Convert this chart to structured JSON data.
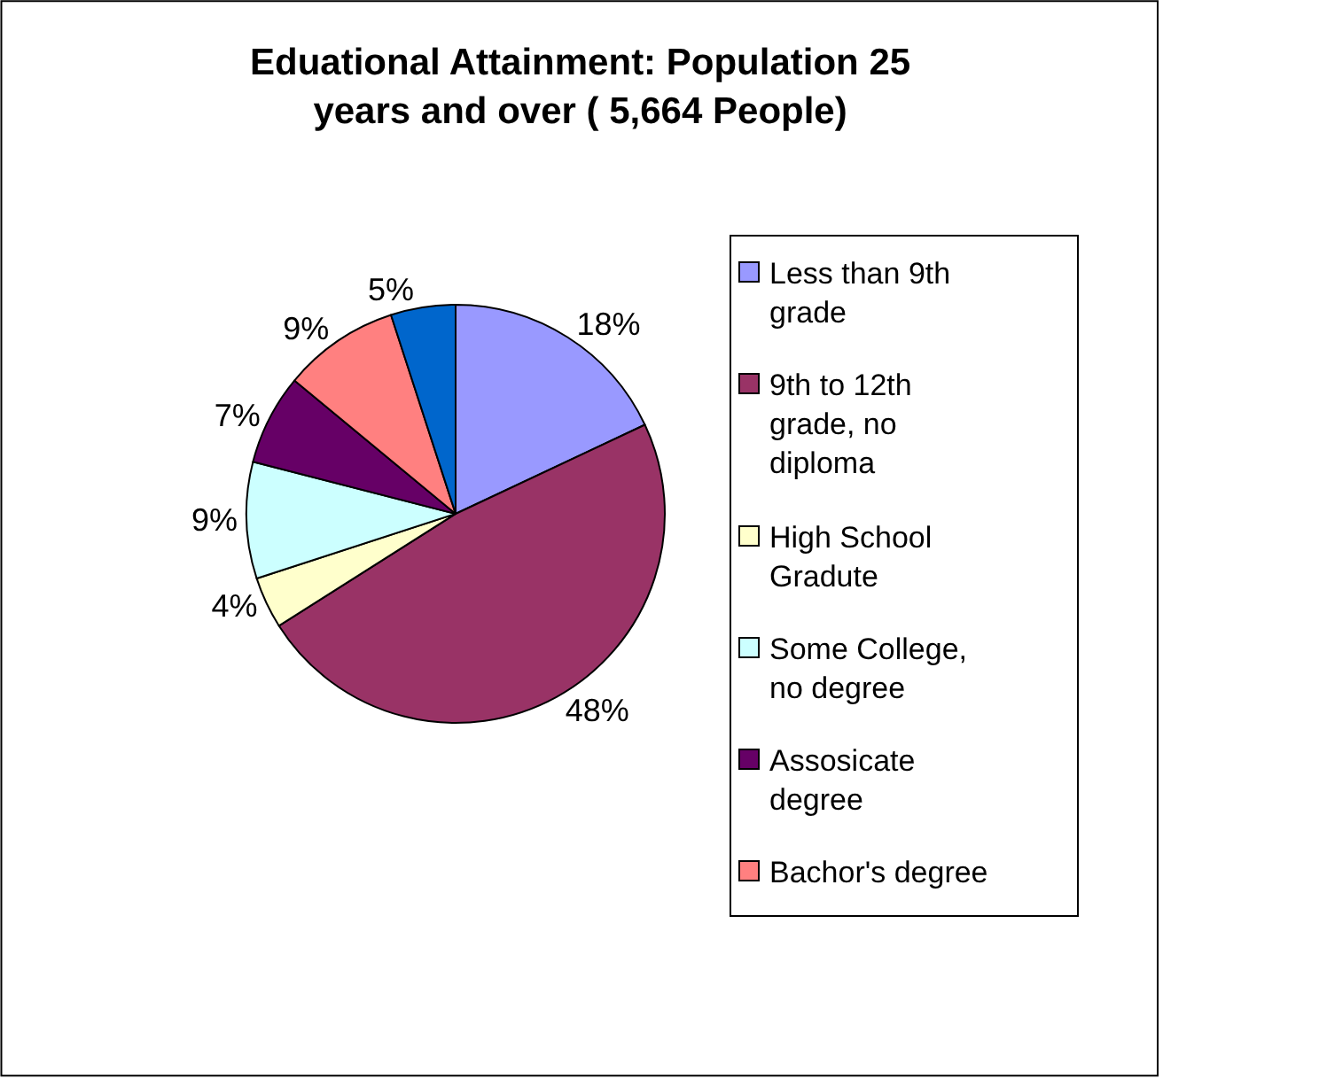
{
  "chart_data": {
    "type": "pie",
    "title": "Eduational Attainment: Population 25 years and over ( 5,664 People)",
    "categories": [
      "Less than 9th grade",
      "9th to 12th grade, no diploma",
      "High School Gradute",
      "Some College, no degree",
      "Assosicate degree",
      "Bachor's degree",
      null
    ],
    "values": [
      18,
      48,
      4,
      9,
      7,
      9,
      5
    ],
    "value_labels": [
      "18%",
      "48%",
      "4%",
      "9%",
      "7%",
      "9%",
      "5%"
    ],
    "colors": [
      "#9999ff",
      "#993366",
      "#ffffcc",
      "#ccffff",
      "#660066",
      "#ff8080",
      "#0066cc"
    ],
    "legend": "right"
  }
}
